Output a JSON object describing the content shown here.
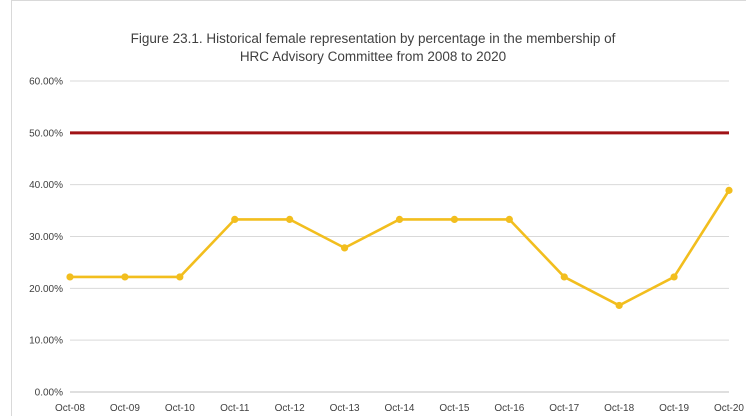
{
  "chart_data": {
    "type": "line",
    "title_line1": "Figure 23.1. Historical female representation by percentage in the membership of",
    "title_line2": "HRC Advisory Committee  from 2008 to 2020",
    "xlabel": "",
    "ylabel": "",
    "categories": [
      "Oct-08",
      "Oct-09",
      "Oct-10",
      "Oct-11",
      "Oct-12",
      "Oct-13",
      "Oct-14",
      "Oct-15",
      "Oct-16",
      "Oct-17",
      "Oct-18",
      "Oct-19",
      "Oct-20"
    ],
    "series": [
      {
        "values": [
          22.2,
          22.2,
          22.2,
          33.3,
          33.3,
          27.8,
          33.3,
          33.3,
          33.3,
          22.2,
          16.7,
          22.2,
          38.9
        ],
        "color": "#f2be1e"
      },
      {
        "values": [
          50,
          50,
          50,
          50,
          50,
          50,
          50,
          50,
          50,
          50,
          50,
          50,
          50
        ],
        "color": "#a01216",
        "markers": false
      }
    ],
    "y_ticks": [
      "0.00%",
      "10.00%",
      "20.00%",
      "30.00%",
      "40.00%",
      "50.00%",
      "60.00%"
    ],
    "ylim": [
      0,
      60
    ],
    "grid": true,
    "gridline_color": "#d9d9d9"
  }
}
